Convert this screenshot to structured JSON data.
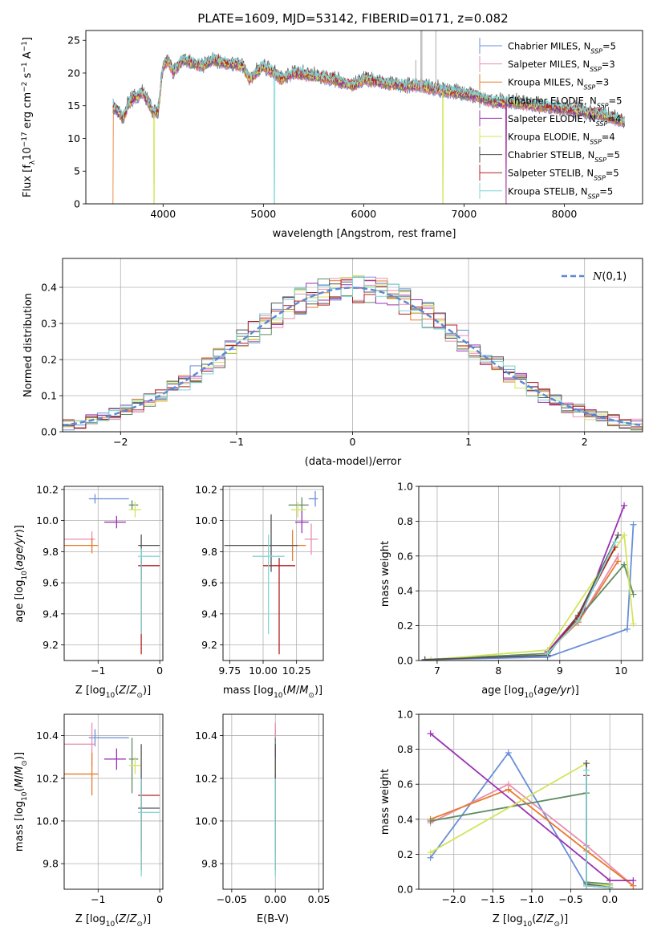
{
  "figure_title": "PLATE=1609, MJD=53142, FIBERID=0171, z=0.082",
  "models": [
    {
      "name": "Chabrier MILES",
      "nssp": "5",
      "color": "#6a8fd8"
    },
    {
      "name": "Salpeter MILES",
      "nssp": "3",
      "color": "#e88fb0"
    },
    {
      "name": "Kroupa MILES",
      "nssp": "3",
      "color": "#e87a2e"
    },
    {
      "name": "Chabrier ELODIE",
      "nssp": "5",
      "color": "#5f8c63"
    },
    {
      "name": "Salpeter ELODIE",
      "nssp": "4",
      "color": "#9b33b5"
    },
    {
      "name": "Kroupa ELODIE",
      "nssp": "4",
      "color": "#d3e45a"
    },
    {
      "name": "Chabrier STELIB",
      "nssp": "5",
      "color": "#555555"
    },
    {
      "name": "Salpeter STELIB",
      "nssp": "5",
      "color": "#b32020"
    },
    {
      "name": "Kroupa STELIB",
      "nssp": "5",
      "color": "#7fd6d6"
    }
  ],
  "chart_data": [
    {
      "id": "spectrum",
      "type": "line",
      "xlabel": "wavelength [Angstrom, rest frame]",
      "ylabel_parts": [
        "Flux [f",
        "λ",
        "10",
        "−17",
        " erg cm",
        "−2",
        " s",
        "−1",
        " A",
        "−1",
        "]"
      ],
      "xlim": [
        3230,
        8780
      ],
      "ylim": [
        0,
        26.5
      ],
      "xticks": [
        4000,
        5000,
        6000,
        7000,
        8000
      ],
      "yticks": [
        0,
        5,
        10,
        15,
        20,
        25
      ],
      "legend_position": "upper-right",
      "legend_entries": [
        "Chabrier MILES",
        "Salpeter MILES",
        "Kroupa MILES",
        "Chabrier ELODIE",
        "Salpeter ELODIE",
        "Kroupa ELODIE",
        "Chabrier STELIB",
        "Salpeter STELIB",
        "Kroupa STELIB"
      ],
      "legend_nssp": [
        "5",
        "3",
        "3",
        "5",
        "4",
        "4",
        "5",
        "5",
        "5"
      ],
      "nssp_label": "N",
      "nssp_sub": "SSP",
      "shape_points": {
        "x": [
          3500,
          3550,
          3600,
          3650,
          3700,
          3800,
          3900,
          3950,
          4000,
          4050,
          4100,
          4200,
          4300,
          4400,
          4500,
          4600,
          4800,
          4861,
          5000,
          5100,
          5175,
          5300,
          5500,
          5700,
          5890,
          6000,
          6200,
          6400,
          6563,
          6700,
          6900,
          7100,
          7300,
          7500,
          7700,
          8000,
          8200,
          8400,
          8600
        ],
        "y": [
          15,
          14,
          13,
          15,
          16,
          17,
          14,
          14,
          21,
          22,
          20,
          22,
          21.5,
          21,
          22,
          21.5,
          21,
          19,
          21,
          20,
          19,
          20,
          19.5,
          19,
          18,
          19,
          18.5,
          18,
          18,
          17.5,
          17,
          16.5,
          15.5,
          15.5,
          15,
          14.5,
          14,
          13.5,
          12.5
        ]
      },
      "dips": [
        {
          "x": 3500,
          "to": 0,
          "series": [
            2
          ]
        },
        {
          "x": 3910,
          "to": 0,
          "series": [
            5
          ]
        },
        {
          "x": 5110,
          "to": 0,
          "series": [
            8
          ]
        },
        {
          "x": 6790,
          "to": 0,
          "series": [
            5
          ]
        },
        {
          "x": 7420,
          "to": 0,
          "series": [
            2,
            4
          ]
        }
      ],
      "spikes": [
        {
          "x": 6520,
          "to": 22
        },
        {
          "x": 6570,
          "to": 26.5
        },
        {
          "x": 6580,
          "to": 26.5
        },
        {
          "x": 6720,
          "to": 26.5
        }
      ]
    },
    {
      "id": "residuals",
      "type": "step",
      "xlabel": "(data-model)/error",
      "ylabel": "Normed distribution",
      "xlim": [
        -2.5,
        2.5
      ],
      "ylim": [
        0,
        0.48
      ],
      "xticks": [
        -2,
        -1,
        0,
        1,
        2
      ],
      "yticks": [
        0.0,
        0.1,
        0.2,
        0.3,
        0.4
      ],
      "legend_label": "N(0,1)",
      "legend_position": "upper-right",
      "normal_curve": {
        "mean": 0,
        "sigma": 1,
        "color": "#5b87d6"
      },
      "bin_width": 0.1
    },
    {
      "id": "age_vs_Z",
      "type": "errorbar",
      "xlabel": "Z [log10(Z/Z⊙)]",
      "ylabel": "age  [log10(age/yr)]",
      "xlim": [
        -1.55,
        0.05
      ],
      "ylim": [
        9.1,
        10.22
      ],
      "xticks": [
        -1,
        0
      ],
      "yticks": [
        9.2,
        9.4,
        9.6,
        9.8,
        10.0,
        10.2
      ],
      "points": [
        {
          "x": -1.05,
          "xerr": [
            0.1,
            0.55
          ],
          "y": 10.14,
          "yerr": [
            0.03,
            0.03
          ]
        },
        {
          "x": -1.1,
          "xerr": [
            0.45,
            0.05
          ],
          "y": 9.88,
          "yerr": [
            0.05,
            0.05
          ]
        },
        {
          "x": -1.1,
          "xerr": [
            0.45,
            0.1
          ],
          "y": 9.84,
          "yerr": [
            0.05,
            0.05
          ]
        },
        {
          "x": -0.45,
          "xerr": [
            0.05,
            0.1
          ],
          "y": 10.1,
          "yerr": [
            0.03,
            0.03
          ]
        },
        {
          "x": -0.7,
          "xerr": [
            0.2,
            0.15
          ],
          "y": 9.99,
          "yerr": [
            0.04,
            0.04
          ]
        },
        {
          "x": -0.4,
          "xerr": [
            0.1,
            0.1
          ],
          "y": 10.07,
          "yerr": [
            0.05,
            0.05
          ]
        },
        {
          "x": -0.3,
          "xerr": [
            0.05,
            0.3
          ],
          "y": 9.84,
          "yerr": [
            0.22,
            0.07
          ]
        },
        {
          "x": -0.3,
          "xerr": [
            0.05,
            0.3
          ],
          "y": 9.71,
          "yerr": [
            0.57,
            0.05
          ]
        },
        {
          "x": -0.3,
          "xerr": [
            0.05,
            0.3
          ],
          "y": 9.77,
          "yerr": [
            0.5,
            0.05
          ]
        }
      ]
    },
    {
      "id": "age_vs_mass",
      "type": "errorbar",
      "xlabel": "mass [log10(M/M⊙)]",
      "ylabel": "",
      "xlim": [
        9.7,
        10.45
      ],
      "ylim": [
        9.1,
        10.22
      ],
      "xticks": [
        9.75,
        10.0,
        10.25
      ],
      "xtick_labels": [
        "9.75",
        "10.00",
        "10.25"
      ],
      "yticks": [
        9.2,
        9.4,
        9.6,
        9.8,
        10.0,
        10.2
      ],
      "points": [
        {
          "x": 10.39,
          "xerr": [
            0.05,
            0.02
          ],
          "y": 10.14,
          "yerr": [
            0.05,
            0.05
          ]
        },
        {
          "x": 10.36,
          "xerr": [
            0.05,
            0.05
          ],
          "y": 9.88,
          "yerr": [
            0.1,
            0.1
          ]
        },
        {
          "x": 10.22,
          "xerr": [
            0.1,
            0.1
          ],
          "y": 9.84,
          "yerr": [
            0.1,
            0.1
          ]
        },
        {
          "x": 10.29,
          "xerr": [
            0.1,
            0.05
          ],
          "y": 10.1,
          "yerr": [
            0.05,
            0.05
          ]
        },
        {
          "x": 10.29,
          "xerr": [
            0.05,
            0.05
          ],
          "y": 9.99,
          "yerr": [
            0.07,
            0.07
          ]
        },
        {
          "x": 10.26,
          "xerr": [
            0.05,
            0.06
          ],
          "y": 10.07,
          "yerr": [
            0.05,
            0.05
          ]
        },
        {
          "x": 10.06,
          "xerr": [
            0.35,
            0.2
          ],
          "y": 9.84,
          "yerr": [
            0.17,
            0.2
          ]
        },
        {
          "x": 10.12,
          "xerr": [
            0.12,
            0.12
          ],
          "y": 9.71,
          "yerr": [
            0.57,
            0.05
          ]
        },
        {
          "x": 10.04,
          "xerr": [
            0.12,
            0.12
          ],
          "y": 9.77,
          "yerr": [
            0.5,
            0.14
          ]
        }
      ]
    },
    {
      "id": "weight_vs_age",
      "type": "line",
      "xlabel": "age  [log10(age/yr)]",
      "ylabel": "mass weight",
      "xlim": [
        6.7,
        10.35
      ],
      "ylim": [
        0,
        1.0
      ],
      "xticks": [
        7,
        8,
        9,
        10
      ],
      "yticks": [
        0.0,
        0.2,
        0.4,
        0.6,
        0.8,
        1.0
      ],
      "series": [
        {
          "x": [
            6.8,
            8.8,
            10.1,
            10.2
          ],
          "y": [
            0.005,
            0.02,
            0.18,
            0.78
          ]
        },
        {
          "x": [
            8.8,
            9.3,
            9.95
          ],
          "y": [
            0.05,
            0.22,
            0.6
          ]
        },
        {
          "x": [
            8.8,
            9.3,
            9.95
          ],
          "y": [
            0.05,
            0.22,
            0.57
          ]
        },
        {
          "x": [
            6.8,
            8.8,
            9.3,
            10.05,
            10.2
          ],
          "y": [
            0.005,
            0.04,
            0.24,
            0.55,
            0.38
          ]
        },
        {
          "x": [
            8.8,
            9.4,
            10.05
          ],
          "y": [
            0.05,
            0.3,
            0.89
          ]
        },
        {
          "x": [
            6.9,
            8.8,
            10.05,
            10.2
          ],
          "y": [
            0.005,
            0.06,
            0.72,
            0.21
          ]
        },
        {
          "x": [
            6.8,
            8.8,
            9.3,
            9.95
          ],
          "y": [
            0.005,
            0.03,
            0.26,
            0.72
          ]
        },
        {
          "x": [
            8.8,
            9.3,
            9.9
          ],
          "y": [
            0.04,
            0.25,
            0.65
          ]
        },
        {
          "x": [
            8.8,
            9.3,
            9.9
          ],
          "y": [
            0.04,
            0.23,
            0.68
          ]
        }
      ]
    },
    {
      "id": "mass_vs_Z",
      "type": "errorbar",
      "xlabel": "Z [log10(Z/Z⊙)]",
      "ylabel": "mass [log10(M/M⊙)]",
      "xlim": [
        -1.55,
        0.05
      ],
      "ylim": [
        9.68,
        10.5
      ],
      "xticks": [
        -1,
        0
      ],
      "yticks": [
        9.8,
        10.0,
        10.2,
        10.4
      ],
      "points": [
        {
          "x": -1.05,
          "xerr": [
            0.1,
            0.55
          ],
          "y": 10.39,
          "yerr": [
            0.04,
            0.04
          ]
        },
        {
          "x": -1.1,
          "xerr": [
            0.45,
            0.05
          ],
          "y": 10.36,
          "yerr": [
            0.1,
            0.1
          ]
        },
        {
          "x": -1.1,
          "xerr": [
            0.45,
            0.1
          ],
          "y": 10.22,
          "yerr": [
            0.1,
            0.1
          ]
        },
        {
          "x": -0.45,
          "xerr": [
            0.05,
            0.1
          ],
          "y": 10.29,
          "yerr": [
            0.16,
            0.1
          ]
        },
        {
          "x": -0.7,
          "xerr": [
            0.2,
            0.15
          ],
          "y": 10.29,
          "yerr": [
            0.05,
            0.05
          ]
        },
        {
          "x": -0.4,
          "xerr": [
            0.1,
            0.1
          ],
          "y": 10.26,
          "yerr": [
            0.04,
            0.04
          ]
        },
        {
          "x": -0.3,
          "xerr": [
            0.05,
            0.3
          ],
          "y": 10.06,
          "yerr": [
            0.2,
            0.3
          ]
        },
        {
          "x": -0.3,
          "xerr": [
            0.05,
            0.3
          ],
          "y": 10.12,
          "yerr": [
            0.35,
            0.08
          ]
        },
        {
          "x": -0.3,
          "xerr": [
            0.05,
            0.3
          ],
          "y": 10.04,
          "yerr": [
            0.3,
            0.16
          ]
        }
      ]
    },
    {
      "id": "mass_vs_EBV",
      "type": "errorbar",
      "xlabel": "E(B-V)",
      "ylabel": "",
      "xlim": [
        -0.06,
        0.055
      ],
      "ylim": [
        9.68,
        10.5
      ],
      "xticks": [
        -0.05,
        0.0,
        0.05
      ],
      "xtick_labels": [
        "−0.05",
        "0.00",
        "0.05"
      ],
      "yticks": [
        9.8,
        10.0,
        10.2,
        10.4
      ],
      "points": [
        {
          "x": 0.0,
          "xerr": [
            0,
            0
          ],
          "y": 10.39,
          "yerr": [
            0.04,
            0.04
          ]
        },
        {
          "x": 0.0,
          "xerr": [
            0,
            0
          ],
          "y": 10.36,
          "yerr": [
            0.1,
            0.1
          ]
        },
        {
          "x": 0.0,
          "xerr": [
            0,
            0
          ],
          "y": 10.22,
          "yerr": [
            0.1,
            0.1
          ]
        },
        {
          "x": 0.0,
          "xerr": [
            0,
            0
          ],
          "y": 10.29,
          "yerr": [
            0.16,
            0.1
          ]
        },
        {
          "x": 0.0,
          "xerr": [
            0,
            0
          ],
          "y": 10.29,
          "yerr": [
            0.05,
            0.05
          ]
        },
        {
          "x": 0.0,
          "xerr": [
            0,
            0
          ],
          "y": 10.26,
          "yerr": [
            0.04,
            0.04
          ]
        },
        {
          "x": 0.0,
          "xerr": [
            0,
            0
          ],
          "y": 10.06,
          "yerr": [
            0.2,
            0.3
          ]
        },
        {
          "x": 0.0,
          "xerr": [
            0,
            0
          ],
          "y": 10.12,
          "yerr": [
            0.35,
            0.08
          ]
        },
        {
          "x": 0.0,
          "xerr": [
            0,
            0
          ],
          "y": 10.04,
          "yerr": [
            0.3,
            0.16
          ]
        }
      ]
    },
    {
      "id": "weight_vs_Z",
      "type": "line",
      "xlabel": "Z [log10(Z/Z⊙)]",
      "ylabel": "mass weight",
      "xlim": [
        -2.45,
        0.42
      ],
      "ylim": [
        0,
        1.0
      ],
      "xticks": [
        -2.0,
        -1.5,
        -1.0,
        -0.5,
        0.0
      ],
      "xtick_labels": [
        "−2.0",
        "−1.5",
        "−1.0",
        "−0.5",
        "0.0"
      ],
      "yticks": [
        0.0,
        0.2,
        0.4,
        0.6,
        0.8,
        1.0
      ],
      "series": [
        {
          "x": [
            -2.3,
            -1.3,
            -0.3,
            0.0
          ],
          "y": [
            0.18,
            0.78,
            0.02,
            0.01
          ]
        },
        {
          "x": [
            -2.3,
            -1.3,
            -0.3,
            0.3
          ],
          "y": [
            0.38,
            0.6,
            0.25,
            0.02
          ]
        },
        {
          "x": [
            -2.3,
            -1.3,
            -0.3,
            0.3
          ],
          "y": [
            0.4,
            0.57,
            0.22,
            0.02
          ]
        },
        {
          "x": [
            -2.3,
            -0.3,
            -0.3,
            0.0
          ],
          "y": [
            0.39,
            0.55,
            0.04,
            0.03
          ]
        },
        {
          "x": [
            -2.3,
            0.0,
            0.3
          ],
          "y": [
            0.89,
            0.05,
            0.05
          ]
        },
        {
          "x": [
            -2.3,
            -0.3,
            -0.3,
            0.0
          ],
          "y": [
            0.21,
            0.72,
            0.03,
            0.02
          ]
        },
        {
          "x": [
            -0.3,
            -0.3,
            0.0
          ],
          "y": [
            0.72,
            0.03,
            0.01
          ]
        },
        {
          "x": [
            -0.3,
            -0.3,
            0.0
          ],
          "y": [
            0.65,
            0.02,
            0.01
          ]
        },
        {
          "x": [
            -0.3,
            -0.3,
            0.0
          ],
          "y": [
            0.68,
            0.02,
            0.01
          ]
        }
      ]
    }
  ]
}
